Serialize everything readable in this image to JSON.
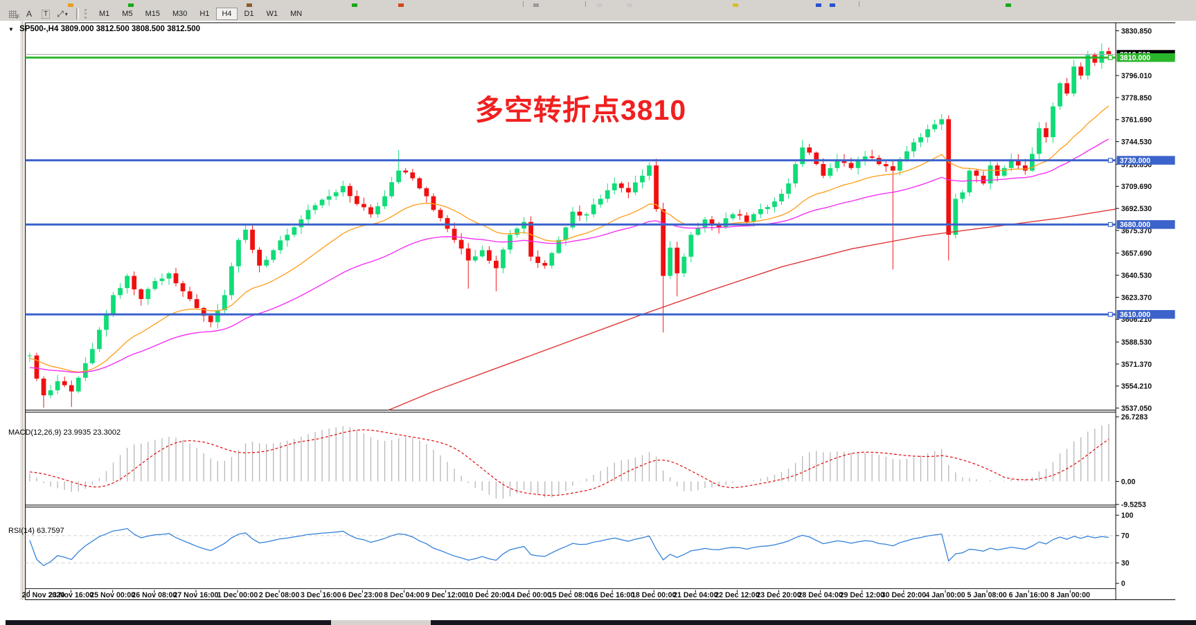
{
  "toolbar": {
    "tool_buttons": [
      {
        "id": "crosshair-tool",
        "label": "F"
      },
      {
        "id": "text-label-tool",
        "label": "A"
      },
      {
        "id": "text-box-tool",
        "label": "T"
      },
      {
        "id": "arrow-objects-tool",
        "label": "⤢"
      }
    ],
    "timeframes": [
      "M1",
      "M5",
      "M15",
      "M30",
      "H1",
      "H4",
      "D1",
      "W1",
      "MN"
    ],
    "active_timeframe": "H4"
  },
  "chart": {
    "symbol_title": "SP500-,H4",
    "ohlc_text": "3809.000 3812.500 3808.500 3812.500",
    "annotation": "多空转折点3810",
    "annotation_color": "#f11f1f",
    "current_price_label": "3812.500",
    "price_ticks": [
      "3830.850",
      "3796.010",
      "3778.850",
      "3761.690",
      "3744.530",
      "3726.850",
      "3709.690",
      "3692.530",
      "3675.370",
      "3657.690",
      "3640.530",
      "3623.370",
      "3606.210",
      "3588.530",
      "3571.370",
      "3554.210",
      "3537.050"
    ],
    "levels": [
      {
        "label": "3810.000",
        "price": 3810,
        "color": "#2ab62a"
      },
      {
        "label": "3730.000",
        "price": 3730,
        "color": "#3b63cb"
      },
      {
        "label": "3680.000",
        "price": 3680,
        "color": "#3b63cb"
      },
      {
        "label": "3610.000",
        "price": 3610,
        "color": "#3b63cb"
      }
    ],
    "colors": {
      "up": "#10dc78",
      "down": "#f01010",
      "ma_fast": "#ffa01e",
      "ma_mid": "#f42af4",
      "ma_slow": "#e03131",
      "macd_hist": "#b9b9b9",
      "macd_signal": "#e00000",
      "rsi_line": "#2f7ed8",
      "rsi_levels": "#cfcfcf",
      "price_line": "#a9a9a9",
      "axis_text": "#111111"
    }
  },
  "macd_panel": {
    "label": "MACD(12,26,9)",
    "value_main": "23.9935",
    "value_signal": "23.3002",
    "axis_ticks": [
      "26.7283",
      "0.00",
      "-9.5253"
    ]
  },
  "rsi_panel": {
    "label": "RSI(14)",
    "value": "63.7597",
    "axis_ticks": [
      "100",
      "70",
      "30",
      "0"
    ]
  },
  "time_axis": {
    "labels": [
      "20 Nov 2020",
      "23 Nov 16:00",
      "25 Nov 00:00",
      "26 Nov 08:00",
      "27 Nov 16:00",
      "1 Dec 00:00",
      "2 Dec 08:00",
      "3 Dec 16:00",
      "6 Dec 23:00",
      "8 Dec 04:00",
      "9 Dec 12:00",
      "10 Dec 20:00",
      "14 Dec 00:00",
      "15 Dec 08:00",
      "16 Dec 16:00",
      "18 Dec 00:00",
      "21 Dec 04:00",
      "22 Dec 12:00",
      "23 Dec 20:00",
      "28 Dec 04:00",
      "29 Dec 12:00",
      "30 Dec 20:00",
      "4 Jan 00:00",
      "5 Jan 08:00",
      "6 Jan 16:00",
      "8 Jan 00:00"
    ]
  },
  "chart_data": {
    "type": "candlestick",
    "symbol": "SP500-",
    "timeframe": "H4",
    "bars": 156,
    "bars_per_time_label": 6,
    "price_range_shown": [
      3537.05,
      3830.85
    ],
    "ohlc_current": {
      "open": 3809.0,
      "high": 3812.5,
      "low": 3808.5,
      "close": 3812.5
    },
    "horizontal_levels": [
      3810,
      3730,
      3680,
      3610
    ],
    "prehistory_waypoints": [
      [
        -40,
        3540
      ],
      [
        -25,
        3580
      ],
      [
        -12,
        3572
      ],
      [
        -6,
        3580
      ],
      [
        -1,
        3578
      ]
    ],
    "close_waypoints": [
      [
        0,
        3578
      ],
      [
        1,
        3560
      ],
      [
        2,
        3547
      ],
      [
        4,
        3558
      ],
      [
        6,
        3550
      ],
      [
        8,
        3572
      ],
      [
        10,
        3598
      ],
      [
        12,
        3625
      ],
      [
        14,
        3640
      ],
      [
        16,
        3622
      ],
      [
        18,
        3636
      ],
      [
        20,
        3642
      ],
      [
        22,
        3628
      ],
      [
        24,
        3615
      ],
      [
        26,
        3604
      ],
      [
        28,
        3625
      ],
      [
        30,
        3668
      ],
      [
        31,
        3676
      ],
      [
        33,
        3648
      ],
      [
        35,
        3660
      ],
      [
        37,
        3672
      ],
      [
        39,
        3684
      ],
      [
        41,
        3695
      ],
      [
        43,
        3702
      ],
      [
        45,
        3710
      ],
      [
        47,
        3696
      ],
      [
        49,
        3688
      ],
      [
        51,
        3702
      ],
      [
        53,
        3722
      ],
      [
        55,
        3716
      ],
      [
        57,
        3702
      ],
      [
        59,
        3685
      ],
      [
        61,
        3668
      ],
      [
        63,
        3652
      ],
      [
        65,
        3660
      ],
      [
        67,
        3646
      ],
      [
        69,
        3672
      ],
      [
        71,
        3682
      ],
      [
        72,
        3655
      ],
      [
        74,
        3648
      ],
      [
        76,
        3668
      ],
      [
        78,
        3690
      ],
      [
        80,
        3688
      ],
      [
        82,
        3700
      ],
      [
        84,
        3712
      ],
      [
        86,
        3705
      ],
      [
        88,
        3718
      ],
      [
        89,
        3726
      ],
      [
        90,
        3692
      ],
      [
        91,
        3640
      ],
      [
        92,
        3662
      ],
      [
        93,
        3642
      ],
      [
        95,
        3672
      ],
      [
        97,
        3684
      ],
      [
        99,
        3678
      ],
      [
        101,
        3688
      ],
      [
        103,
        3682
      ],
      [
        105,
        3692
      ],
      [
        107,
        3698
      ],
      [
        109,
        3712
      ],
      [
        110,
        3727
      ],
      [
        111,
        3740
      ],
      [
        112,
        3736
      ],
      [
        114,
        3718
      ],
      [
        116,
        3730
      ],
      [
        118,
        3724
      ],
      [
        120,
        3733
      ],
      [
        122,
        3727
      ],
      [
        124,
        3722
      ],
      [
        126,
        3737
      ],
      [
        128,
        3748
      ],
      [
        130,
        3758
      ],
      [
        131,
        3762
      ],
      [
        132,
        3672
      ],
      [
        133,
        3700
      ],
      [
        134,
        3705
      ],
      [
        135,
        3722
      ],
      [
        136,
        3718
      ],
      [
        137,
        3712
      ],
      [
        138,
        3726
      ],
      [
        139,
        3718
      ],
      [
        140,
        3724
      ],
      [
        141,
        3730
      ],
      [
        142,
        3726
      ],
      [
        143,
        3722
      ],
      [
        144,
        3735
      ],
      [
        145,
        3755
      ],
      [
        146,
        3748
      ],
      [
        147,
        3772
      ],
      [
        148,
        3790
      ],
      [
        149,
        3782
      ],
      [
        150,
        3803
      ],
      [
        151,
        3796
      ],
      [
        152,
        3812
      ],
      [
        153,
        3806
      ],
      [
        154,
        3815
      ],
      [
        155,
        3812.5
      ]
    ],
    "wick_overrides": [
      {
        "i": 2,
        "low": 3537.3
      },
      {
        "i": 6,
        "low": 3538
      },
      {
        "i": 26,
        "low": 3600
      },
      {
        "i": 53,
        "high": 3738
      },
      {
        "i": 63,
        "low": 3630
      },
      {
        "i": 67,
        "low": 3628
      },
      {
        "i": 91,
        "low": 3596
      },
      {
        "i": 93,
        "low": 3624
      },
      {
        "i": 111,
        "high": 3746
      },
      {
        "i": 124,
        "low": 3645
      },
      {
        "i": 131,
        "high": 3766
      },
      {
        "i": 132,
        "low": 3652
      },
      {
        "i": 154,
        "high": 3821
      }
    ],
    "moving_averages": [
      {
        "name": "ma-fast-orange",
        "type": "ema",
        "period": 20
      },
      {
        "name": "ma-mid-magenta",
        "type": "ema",
        "period": 45
      },
      {
        "name": "ma-slow-red",
        "type": "waypoints",
        "points": [
          [
            50,
            3532
          ],
          [
            58,
            3550
          ],
          [
            68,
            3570
          ],
          [
            78,
            3590
          ],
          [
            88,
            3610
          ],
          [
            98,
            3629
          ],
          [
            108,
            3647
          ],
          [
            118,
            3661
          ],
          [
            128,
            3671
          ],
          [
            138,
            3678
          ],
          [
            148,
            3685
          ],
          [
            156,
            3692
          ]
        ]
      }
    ],
    "macd": {
      "fast": 12,
      "slow": 26,
      "signal": 9,
      "current_main": 23.9935,
      "current_signal": 23.3002,
      "axis_max": 26.7283,
      "axis_min": -9.5253
    },
    "rsi": {
      "period": 14,
      "current": 63.7597,
      "overbought": 70,
      "oversold": 30,
      "scale": [
        0,
        100
      ]
    }
  }
}
